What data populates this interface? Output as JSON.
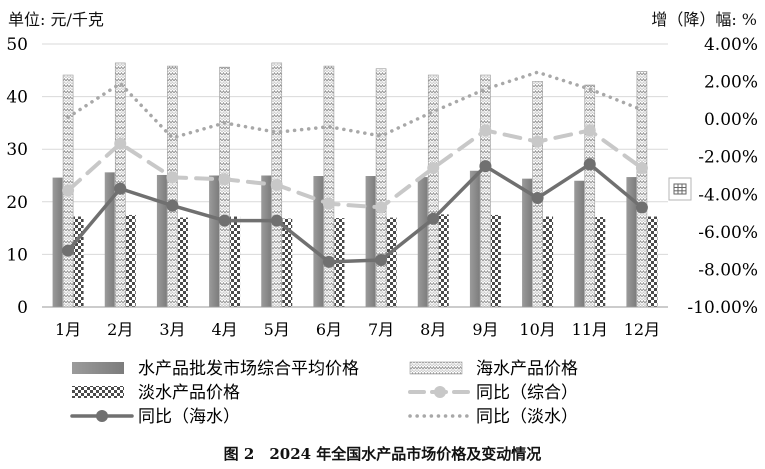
{
  "chart_data": {
    "type": "bar",
    "title": "图 2　2024 年全国水产品市场价格及变动情况",
    "ylabel": "单位: 元/千克",
    "y2label": "增（降）幅: %",
    "ylim": [
      0,
      50
    ],
    "y2lim": [
      -10,
      4
    ],
    "yticks": [
      "0",
      "10",
      "20",
      "30",
      "40",
      "50"
    ],
    "y2ticks": [
      "-10.00%",
      "-8.00%",
      "-6.00%",
      "-4.00%",
      "-2.00%",
      "0.00%",
      "2.00%",
      "4.00%"
    ],
    "grid": true,
    "legend_position": "bottom",
    "categories": [
      "1月",
      "2月",
      "3月",
      "4月",
      "5月",
      "6月",
      "7月",
      "8月",
      "9月",
      "10月",
      "11月",
      "12月"
    ],
    "bar_series": [
      {
        "name": "水产品批发市场综合平均价格",
        "color": "#8c8c8c",
        "pattern": "solid",
        "values": [
          24.6,
          25.6,
          25.1,
          25.0,
          25.0,
          24.9,
          24.9,
          24.7,
          25.9,
          24.4,
          24.0,
          24.7
        ]
      },
      {
        "name": "海水产品价格",
        "color": "#bdbdbd",
        "pattern": "zigzag",
        "values": [
          44.1,
          46.4,
          45.8,
          45.6,
          46.4,
          45.8,
          45.3,
          44.1,
          44.1,
          42.9,
          42.2,
          44.8
        ]
      },
      {
        "name": "淡水产品价格",
        "color": "#555555",
        "pattern": "checker",
        "values": [
          17.2,
          17.5,
          17.0,
          17.2,
          16.8,
          16.9,
          17.0,
          17.6,
          17.5,
          17.2,
          17.1,
          17.2
        ]
      }
    ],
    "line_series": [
      {
        "name": "同比（综合）",
        "color": "#c8c8c8",
        "style": "dash-marker",
        "values": [
          -3.8,
          -1.3,
          -3.1,
          -3.2,
          -3.5,
          -4.5,
          -4.7,
          -2.6,
          -0.6,
          -1.2,
          -0.6,
          -2.6
        ]
      },
      {
        "name": "同比（海水）",
        "color": "#707070",
        "style": "solid-marker",
        "values": [
          -7.0,
          -3.7,
          -4.6,
          -5.4,
          -5.4,
          -7.6,
          -7.5,
          -5.3,
          -2.5,
          -4.2,
          -2.4,
          -4.7
        ]
      },
      {
        "name": "同比（淡水）",
        "color": "#a8a8a8",
        "style": "dotted",
        "values": [
          0.1,
          1.9,
          -1.0,
          -0.2,
          -0.7,
          -0.4,
          -0.9,
          0.4,
          1.6,
          2.5,
          1.6,
          0.5
        ]
      }
    ]
  },
  "ui": {
    "unit_left": "单位: 元/千克",
    "unit_right": "增（降）幅: %",
    "caption": "图 2　2024 年全国水产品市场价格及变动情况",
    "side_icon": "table-icon"
  }
}
